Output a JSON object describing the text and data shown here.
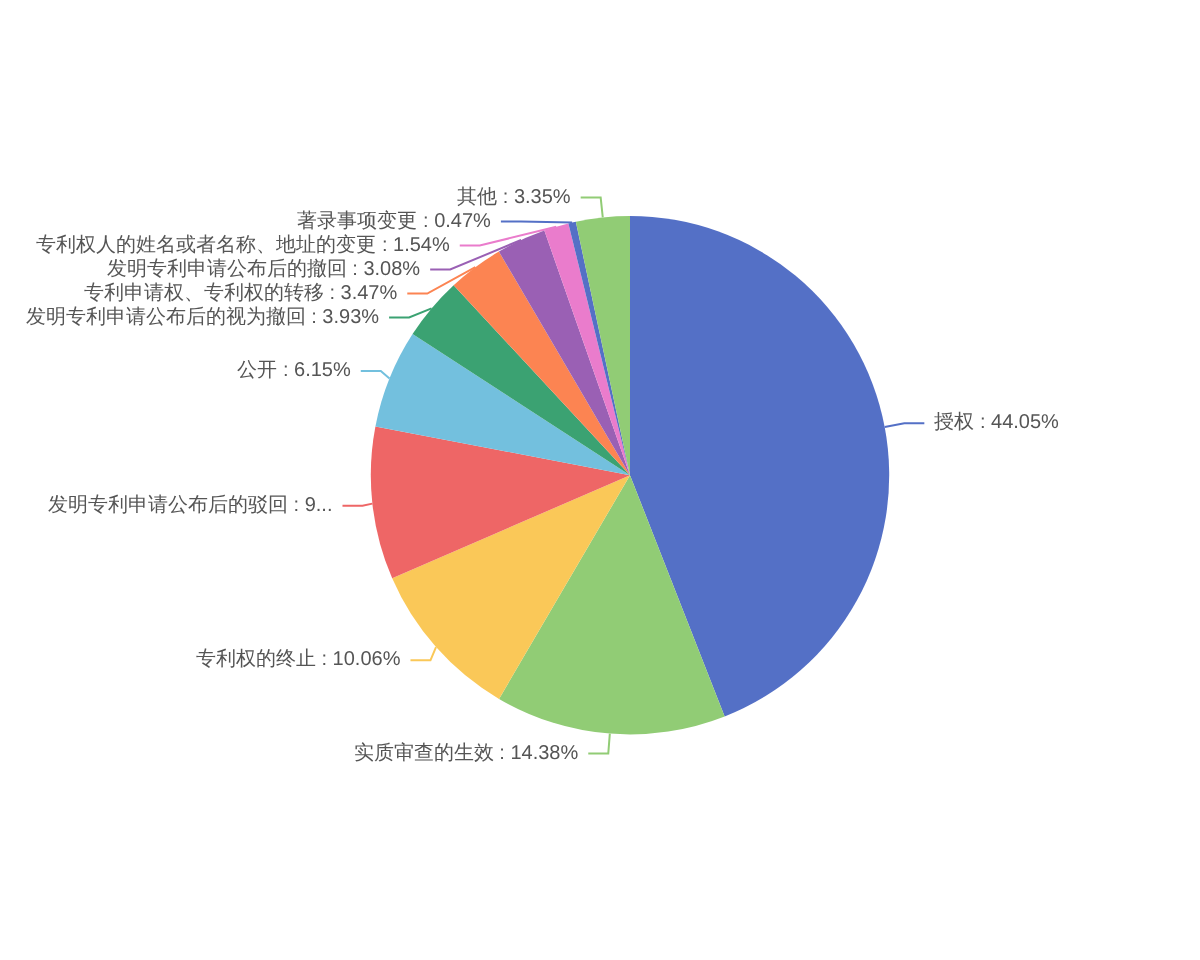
{
  "chart_data": {
    "type": "pie",
    "categories": [
      "授权",
      "实质审查的生效",
      "专利权的终止",
      "发明专利申请公布后的驳回",
      "公开",
      "发明专利申请公布后的视为撤回",
      "专利申请权、专利权的转移",
      "发明专利申请公布后的撤回",
      "专利权人的姓名或者名称、地址的变更",
      "著录事项变更",
      "其他"
    ],
    "values": [
      44.05,
      14.38,
      10.06,
      9.52,
      6.15,
      3.93,
      3.47,
      3.08,
      1.54,
      0.47,
      3.35
    ],
    "value_labels": [
      "44.05%",
      "14.38%",
      "10.06%",
      "9...",
      "6.15%",
      "3.93%",
      "3.47%",
      "3.08%",
      "1.54%",
      "0.47%",
      "3.35%"
    ],
    "colors": [
      "#5470c6",
      "#91cc75",
      "#fac858",
      "#ee6666",
      "#73c0de",
      "#3ba272",
      "#fc8452",
      "#9a60b4",
      "#ea7ccc",
      "#5470c6",
      "#91cc75"
    ],
    "legend": false
  }
}
